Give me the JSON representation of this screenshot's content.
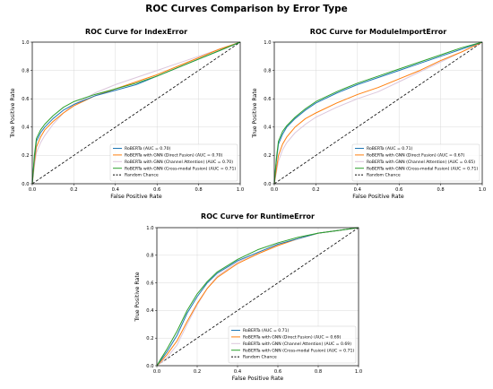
{
  "figure": {
    "title": "ROC Curves Comparison by Error Type"
  },
  "colors": {
    "roberta": "#1f77b4",
    "direct": "#ff7f0e",
    "channel": "#dcc7dc",
    "crossmodal": "#2ca02c",
    "chance": "#000000"
  },
  "chart_data": [
    {
      "type": "line",
      "title": "ROC Curve for IndexError",
      "xlabel": "False Positive Rate",
      "ylabel": "True Positive Rate",
      "xlim": [
        0,
        1
      ],
      "ylim": [
        0,
        1
      ],
      "xticks": [
        "0.0",
        "0.2",
        "0.4",
        "0.6",
        "0.8",
        "1.0"
      ],
      "yticks": [
        "0.0",
        "0.2",
        "0.4",
        "0.6",
        "0.8",
        "1.0"
      ],
      "grid": true,
      "legend_position": "lower-right",
      "series": [
        {
          "name": "RoBERTa (AUC = 0.70)",
          "color_key": "roberta",
          "x": [
            0,
            0.01,
            0.02,
            0.04,
            0.06,
            0.1,
            0.15,
            0.2,
            0.3,
            0.4,
            0.5,
            0.6,
            0.7,
            0.8,
            0.9,
            1.0
          ],
          "y": [
            0,
            0.18,
            0.3,
            0.36,
            0.4,
            0.46,
            0.52,
            0.56,
            0.62,
            0.66,
            0.7,
            0.76,
            0.82,
            0.88,
            0.94,
            1.0
          ]
        },
        {
          "name": "RoBERTa with GNN (Direct Fusion) (AUC = 0.70)",
          "color_key": "direct",
          "x": [
            0,
            0.01,
            0.02,
            0.04,
            0.06,
            0.1,
            0.15,
            0.2,
            0.3,
            0.4,
            0.5,
            0.6,
            0.7,
            0.8,
            0.9,
            1.0
          ],
          "y": [
            0,
            0.15,
            0.26,
            0.33,
            0.38,
            0.44,
            0.5,
            0.55,
            0.62,
            0.67,
            0.72,
            0.77,
            0.83,
            0.89,
            0.95,
            1.0
          ]
        },
        {
          "name": "RoBERTa with GNN (Channel Attention) (AUC = 0.70)",
          "color_key": "channel",
          "x": [
            0,
            0.01,
            0.02,
            0.04,
            0.06,
            0.1,
            0.15,
            0.2,
            0.3,
            0.4,
            0.5,
            0.6,
            0.7,
            0.8,
            0.9,
            1.0
          ],
          "y": [
            0,
            0.12,
            0.22,
            0.29,
            0.34,
            0.42,
            0.5,
            0.56,
            0.64,
            0.7,
            0.75,
            0.8,
            0.85,
            0.9,
            0.95,
            1.0
          ]
        },
        {
          "name": "RoBERTa with GNN (Cross-modal Fusion) (AUC = 0.71)",
          "color_key": "crossmodal",
          "x": [
            0,
            0.01,
            0.02,
            0.04,
            0.06,
            0.1,
            0.15,
            0.2,
            0.3,
            0.4,
            0.5,
            0.6,
            0.7,
            0.8,
            0.9,
            1.0
          ],
          "y": [
            0,
            0.2,
            0.32,
            0.38,
            0.42,
            0.48,
            0.54,
            0.58,
            0.63,
            0.67,
            0.71,
            0.76,
            0.82,
            0.88,
            0.94,
            1.0
          ]
        },
        {
          "name": "Random Chance",
          "color_key": "chance",
          "dashed": true,
          "x": [
            0,
            1
          ],
          "y": [
            0,
            1
          ]
        }
      ]
    },
    {
      "type": "line",
      "title": "ROC Curve for ModuleImportError",
      "xlabel": "False Positive Rate",
      "ylabel": "True Positive Rate",
      "xlim": [
        0,
        1
      ],
      "ylim": [
        0,
        1
      ],
      "xticks": [
        "0.0",
        "0.2",
        "0.4",
        "0.6",
        "0.8",
        "1.0"
      ],
      "yticks": [
        "0.0",
        "0.2",
        "0.4",
        "0.6",
        "0.8",
        "1.0"
      ],
      "grid": true,
      "legend_position": "lower-right",
      "series": [
        {
          "name": "RoBERTa (AUC = 0.71)",
          "color_key": "roberta",
          "x": [
            0,
            0.01,
            0.02,
            0.04,
            0.06,
            0.1,
            0.15,
            0.2,
            0.3,
            0.4,
            0.5,
            0.6,
            0.7,
            0.8,
            0.9,
            1.0
          ],
          "y": [
            0,
            0.16,
            0.28,
            0.35,
            0.4,
            0.46,
            0.52,
            0.57,
            0.64,
            0.7,
            0.75,
            0.8,
            0.85,
            0.9,
            0.95,
            1.0
          ]
        },
        {
          "name": "RoBERTa with GNN (Direct Fusion) (AUC = 0.67)",
          "color_key": "direct",
          "x": [
            0,
            0.01,
            0.02,
            0.04,
            0.06,
            0.1,
            0.15,
            0.2,
            0.3,
            0.4,
            0.5,
            0.6,
            0.7,
            0.8,
            0.9,
            1.0
          ],
          "y": [
            0,
            0.1,
            0.2,
            0.28,
            0.33,
            0.4,
            0.46,
            0.5,
            0.57,
            0.63,
            0.68,
            0.74,
            0.8,
            0.87,
            0.93,
            1.0
          ]
        },
        {
          "name": "RoBERTa with GNN (Channel Attention) (AUC = 0.65)",
          "color_key": "channel",
          "x": [
            0,
            0.01,
            0.02,
            0.04,
            0.06,
            0.1,
            0.15,
            0.2,
            0.3,
            0.4,
            0.5,
            0.6,
            0.7,
            0.8,
            0.9,
            1.0
          ],
          "y": [
            0,
            0.08,
            0.16,
            0.24,
            0.29,
            0.36,
            0.42,
            0.47,
            0.54,
            0.6,
            0.65,
            0.72,
            0.79,
            0.86,
            0.93,
            1.0
          ]
        },
        {
          "name": "RoBERTa with GNN (Cross-modal Fusion) (AUC = 0.71)",
          "color_key": "crossmodal",
          "x": [
            0,
            0.01,
            0.02,
            0.04,
            0.06,
            0.1,
            0.15,
            0.2,
            0.3,
            0.4,
            0.5,
            0.6,
            0.7,
            0.8,
            0.9,
            1.0
          ],
          "y": [
            0,
            0.18,
            0.3,
            0.37,
            0.41,
            0.47,
            0.53,
            0.58,
            0.65,
            0.71,
            0.76,
            0.81,
            0.86,
            0.91,
            0.96,
            1.0
          ]
        },
        {
          "name": "Random Chance",
          "color_key": "chance",
          "dashed": true,
          "x": [
            0,
            1
          ],
          "y": [
            0,
            1
          ]
        }
      ]
    },
    {
      "type": "line",
      "title": "ROC Curve for RuntimeError",
      "xlabel": "False Positive Rate",
      "ylabel": "True Positive Rate",
      "xlim": [
        0,
        1
      ],
      "ylim": [
        0,
        1
      ],
      "xticks": [
        "0.0",
        "0.2",
        "0.4",
        "0.6",
        "0.8",
        "1.0"
      ],
      "yticks": [
        "0.0",
        "0.2",
        "0.4",
        "0.6",
        "0.8",
        "1.0"
      ],
      "grid": true,
      "legend_position": "lower-right",
      "series": [
        {
          "name": "RoBERTa (AUC = 0.71)",
          "color_key": "roberta",
          "x": [
            0,
            0.02,
            0.05,
            0.1,
            0.15,
            0.2,
            0.25,
            0.3,
            0.4,
            0.5,
            0.6,
            0.7,
            0.8,
            0.9,
            1.0
          ],
          "y": [
            0,
            0.04,
            0.1,
            0.22,
            0.38,
            0.5,
            0.6,
            0.67,
            0.76,
            0.82,
            0.88,
            0.92,
            0.96,
            0.98,
            1.0
          ]
        },
        {
          "name": "RoBERTa with GNN (Direct Fusion) (AUC = 0.69)",
          "color_key": "direct",
          "x": [
            0,
            0.02,
            0.05,
            0.1,
            0.15,
            0.2,
            0.25,
            0.3,
            0.4,
            0.5,
            0.6,
            0.7,
            0.8,
            0.9,
            1.0
          ],
          "y": [
            0,
            0.03,
            0.08,
            0.18,
            0.32,
            0.45,
            0.56,
            0.64,
            0.74,
            0.81,
            0.87,
            0.92,
            0.96,
            0.98,
            1.0
          ]
        },
        {
          "name": "RoBERTa with GNN (Channel Attention) (AUC = 0.69)",
          "color_key": "channel",
          "x": [
            0,
            0.02,
            0.05,
            0.1,
            0.15,
            0.2,
            0.25,
            0.3,
            0.4,
            0.5,
            0.6,
            0.7,
            0.8,
            0.9,
            1.0
          ],
          "y": [
            0,
            0.02,
            0.06,
            0.15,
            0.3,
            0.44,
            0.56,
            0.65,
            0.75,
            0.82,
            0.88,
            0.92,
            0.96,
            0.98,
            1.0
          ]
        },
        {
          "name": "RoBERTa with GNN (Cross-modal Fusion) (AUC = 0.71)",
          "color_key": "crossmodal",
          "x": [
            0,
            0.02,
            0.05,
            0.1,
            0.15,
            0.2,
            0.25,
            0.3,
            0.4,
            0.5,
            0.6,
            0.7,
            0.8,
            0.9,
            1.0
          ],
          "y": [
            0,
            0.05,
            0.12,
            0.25,
            0.4,
            0.52,
            0.61,
            0.68,
            0.77,
            0.84,
            0.89,
            0.93,
            0.96,
            0.98,
            1.0
          ]
        },
        {
          "name": "Random Chance",
          "color_key": "chance",
          "dashed": true,
          "x": [
            0,
            1
          ],
          "y": [
            0,
            1
          ]
        }
      ]
    }
  ]
}
